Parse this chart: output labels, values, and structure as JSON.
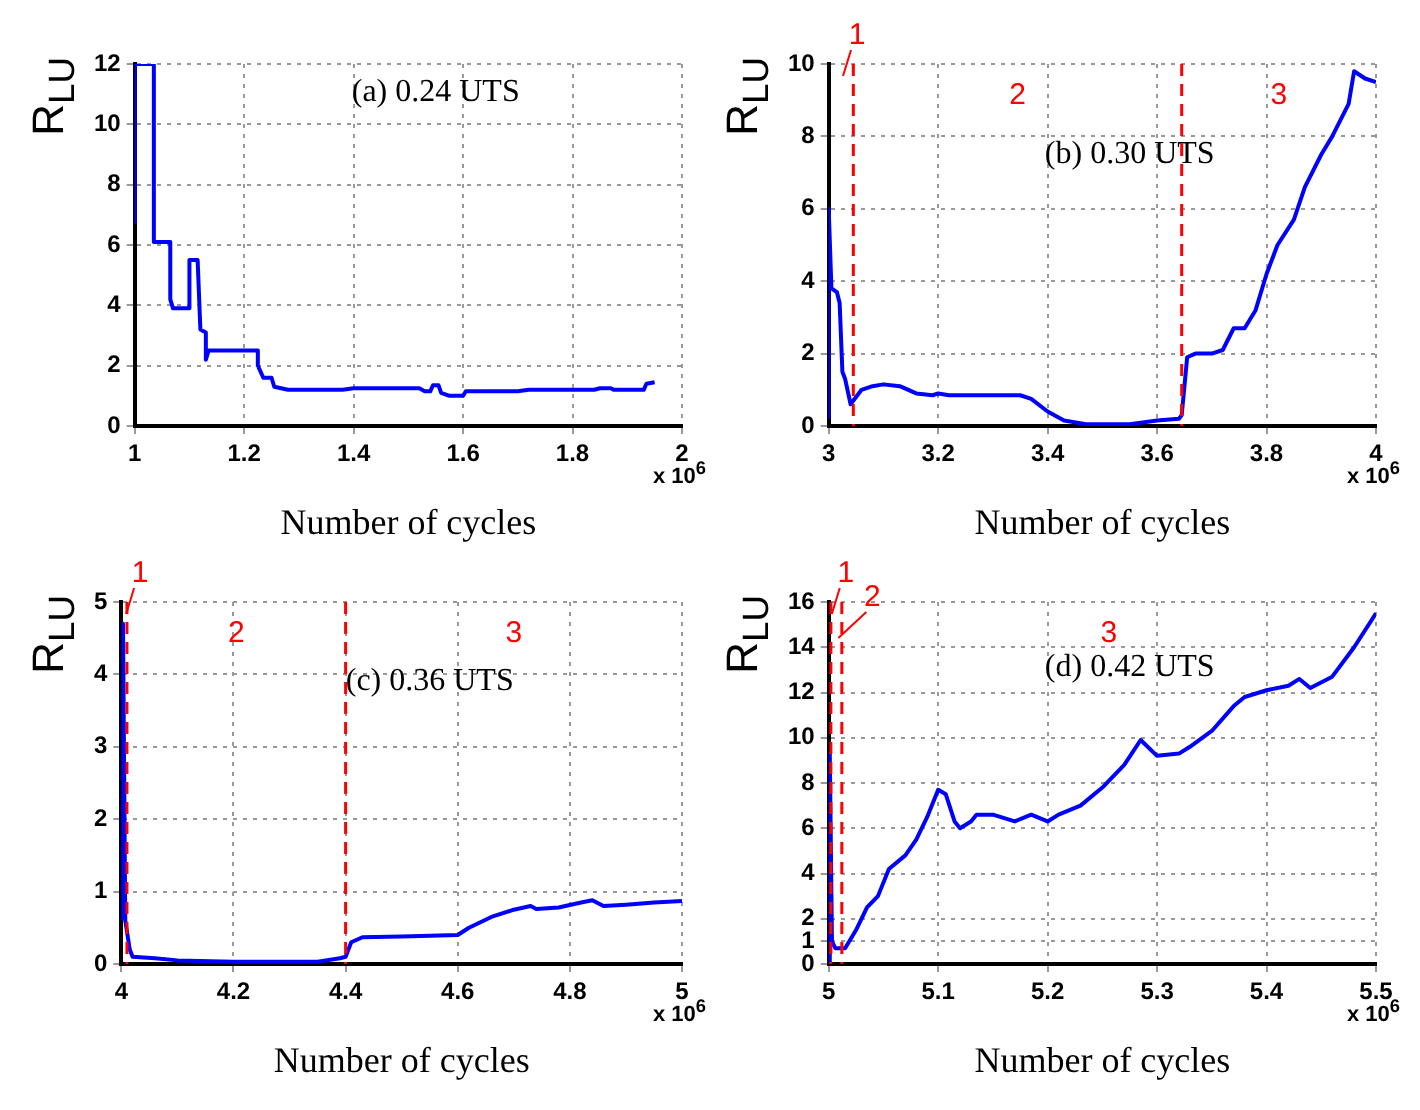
{
  "chart_data": [
    {
      "type": "line",
      "title": "(a) 0.24 UTS",
      "xlabel": "Number of cycles",
      "ylabel": "R$_{LU}$",
      "annotations": [
        "x 10$^{6}$"
      ],
      "xlim": [
        1,
        2
      ],
      "xticks": [
        1,
        1.2,
        1.4,
        1.6,
        1.8,
        2
      ],
      "ylim": [
        0,
        12
      ],
      "yticks": [
        0,
        2,
        4,
        6,
        8,
        10,
        12
      ],
      "grid": true,
      "legend": false,
      "marker": "none",
      "line_style": "solid",
      "series": [
        {
          "color": "#0000ff",
          "x": [
            1,
            1,
            1.035,
            1.035,
            1.065,
            1.065,
            1.07,
            1.1,
            1.1,
            1.115,
            1.12,
            1.13,
            1.13,
            1.135,
            1.225,
            1.225,
            1.235,
            1.25,
            1.255,
            1.28,
            1.38,
            1.4,
            1.52,
            1.53,
            1.54,
            1.545,
            1.555,
            1.56,
            1.575,
            1.6,
            1.605,
            1.7,
            1.72,
            1.84,
            1.85,
            1.87,
            1.875,
            1.93,
            1.935,
            1.95
          ],
          "values": [
            6.7,
            12,
            12,
            6.1,
            6.1,
            4.2,
            3.9,
            3.9,
            5.5,
            5.5,
            3.2,
            3.1,
            2.2,
            2.5,
            2.5,
            2,
            1.6,
            1.6,
            1.3,
            1.2,
            1.2,
            1.25,
            1.25,
            1.15,
            1.15,
            1.35,
            1.35,
            1.1,
            1,
            1,
            1.15,
            1.15,
            1.2,
            1.2,
            1.25,
            1.25,
            1.2,
            1.2,
            1.4,
            1.45
          ]
        }
      ]
    },
    {
      "type": "line",
      "title": "(b) 0.30 UTS",
      "xlabel": "Number of cycles",
      "ylabel": "R$_{LU}$",
      "annotations": [
        "x 10$^{6}$",
        "1",
        "2",
        "3"
      ],
      "xlim": [
        3,
        4
      ],
      "xticks": [
        3,
        3.2,
        3.4,
        3.6,
        3.8,
        4
      ],
      "ylim": [
        0,
        10
      ],
      "yticks": [
        0,
        2,
        4,
        6,
        8,
        10
      ],
      "grid": true,
      "legend": false,
      "marker": "none",
      "line_style": "solid",
      "ref_lines": [
        {
          "axis": "x",
          "value": 3.045,
          "color": "#ff0000",
          "line_style": "dashed"
        },
        {
          "axis": "x",
          "value": 3.645,
          "color": "#ff0000",
          "line_style": "dashed"
        }
      ],
      "series": [
        {
          "color": "#0000ff",
          "x": [
            3,
            3,
            3.005,
            3.015,
            3.02,
            3.025,
            3.03,
            3.04,
            3.05,
            3.06,
            3.08,
            3.1,
            3.13,
            3.16,
            3.19,
            3.2,
            3.22,
            3.3,
            3.35,
            3.37,
            3.4,
            3.43,
            3.47,
            3.55,
            3.6,
            3.64,
            3.645,
            3.655,
            3.67,
            3.7,
            3.72,
            3.74,
            3.76,
            3.78,
            3.8,
            3.82,
            3.85,
            3.87,
            3.9,
            3.92,
            3.95,
            3.96,
            3.98,
            4
          ],
          "values": [
            0.2,
            6,
            3.8,
            3.7,
            3.4,
            1.5,
            1.3,
            0.6,
            0.8,
            1,
            1.1,
            1.15,
            1.1,
            0.9,
            0.85,
            0.9,
            0.85,
            0.85,
            0.85,
            0.75,
            0.4,
            0.15,
            0.05,
            0.05,
            0.15,
            0.2,
            0.3,
            1.9,
            2,
            2,
            2.1,
            2.7,
            2.7,
            3.2,
            4.2,
            5,
            5.7,
            6.6,
            7.5,
            8,
            8.9,
            9.8,
            9.6,
            9.5
          ]
        }
      ]
    },
    {
      "type": "line",
      "title": "(c) 0.36 UTS",
      "xlabel": "Number of cycles",
      "ylabel": "R$_{LU}$",
      "annotations": [
        "x 10$^{6}$",
        "1",
        "2",
        "3"
      ],
      "xlim": [
        4,
        5
      ],
      "xticks": [
        4,
        4.2,
        4.4,
        4.6,
        4.8,
        5
      ],
      "ylim": [
        0,
        5
      ],
      "yticks": [
        0,
        1,
        2,
        3,
        4,
        5
      ],
      "grid": true,
      "legend": false,
      "marker": "none",
      "line_style": "solid",
      "ref_lines": [
        {
          "axis": "x",
          "value": 4.01,
          "color": "#ff0000",
          "line_style": "dashed"
        },
        {
          "axis": "x",
          "value": 4.4,
          "color": "#ff0000",
          "line_style": "dashed"
        }
      ],
      "series": [
        {
          "color": "#0000ff",
          "x": [
            4,
            4.003,
            4.007,
            4.015,
            4.02,
            4.06,
            4.1,
            4.2,
            4.35,
            4.39,
            4.4,
            4.41,
            4.43,
            4.5,
            4.6,
            4.62,
            4.66,
            4.7,
            4.73,
            4.74,
            4.78,
            4.82,
            4.84,
            4.86,
            4.9,
            4.95,
            5
          ],
          "values": [
            0.6,
            4.7,
            0.6,
            0.2,
            0.1,
            0.08,
            0.05,
            0.03,
            0.03,
            0.08,
            0.1,
            0.3,
            0.37,
            0.38,
            0.4,
            0.5,
            0.65,
            0.75,
            0.8,
            0.76,
            0.78,
            0.85,
            0.88,
            0.8,
            0.82,
            0.85,
            0.87
          ]
        }
      ]
    },
    {
      "type": "line",
      "title": "(d) 0.42 UTS",
      "xlabel": "Number of cycles",
      "ylabel": "R$_{LU}$",
      "annotations": [
        "x 10$^{6}$",
        "1",
        "2",
        "3"
      ],
      "xlim": [
        5,
        5.5
      ],
      "xticks": [
        5,
        5.1,
        5.2,
        5.3,
        5.4,
        5.5
      ],
      "ylim": [
        0,
        16
      ],
      "yticks": [
        0,
        1,
        2,
        4,
        6,
        8,
        10,
        12,
        14,
        16
      ],
      "grid": true,
      "legend": false,
      "marker": "none",
      "line_style": "solid",
      "ref_lines": [
        {
          "axis": "x",
          "value": 5.002,
          "color": "#ff0000",
          "line_style": "dashed"
        },
        {
          "axis": "x",
          "value": 5.012,
          "color": "#ff0000",
          "line_style": "dashed"
        }
      ],
      "series": [
        {
          "color": "#0000ff",
          "x": [
            5,
            5.001,
            5.003,
            5.006,
            5.015,
            5.025,
            5.035,
            5.045,
            5.055,
            5.07,
            5.08,
            5.09,
            5.1,
            5.107,
            5.115,
            5.12,
            5.13,
            5.135,
            5.15,
            5.17,
            5.185,
            5.2,
            5.21,
            5.23,
            5.25,
            5.27,
            5.285,
            5.3,
            5.32,
            5.33,
            5.35,
            5.37,
            5.38,
            5.4,
            5.42,
            5.43,
            5.44,
            5.46,
            5.48,
            5.5
          ],
          "values": [
            0,
            9.3,
            1,
            0.7,
            0.7,
            1.5,
            2.5,
            3,
            4.2,
            4.8,
            5.5,
            6.5,
            7.7,
            7.5,
            6.3,
            6,
            6.3,
            6.6,
            6.6,
            6.3,
            6.6,
            6.3,
            6.6,
            7,
            7.8,
            8.8,
            9.9,
            9.2,
            9.3,
            9.6,
            10.3,
            11.4,
            11.8,
            12.1,
            12.3,
            12.6,
            12.2,
            12.7,
            14,
            15.5
          ]
        }
      ]
    }
  ]
}
